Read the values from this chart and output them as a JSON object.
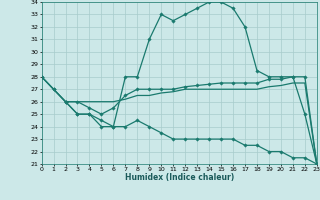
{
  "xlabel": "Humidex (Indice chaleur)",
  "xlim": [
    0,
    23
  ],
  "ylim": [
    21,
    34
  ],
  "yticks": [
    21,
    22,
    23,
    24,
    25,
    26,
    27,
    28,
    29,
    30,
    31,
    32,
    33,
    34
  ],
  "xticks": [
    0,
    1,
    2,
    3,
    4,
    5,
    6,
    7,
    8,
    9,
    10,
    11,
    12,
    13,
    14,
    15,
    16,
    17,
    18,
    19,
    20,
    21,
    22,
    23
  ],
  "bg_color": "#cce8e8",
  "line_color": "#1a7a6e",
  "grid_color": "#a8cccc",
  "line1_x": [
    0,
    1,
    2,
    3,
    4,
    5,
    6,
    7,
    8,
    9,
    10,
    11,
    12,
    13,
    14,
    15,
    16,
    17,
    18,
    19,
    20,
    21,
    22,
    23
  ],
  "line1_y": [
    28,
    27,
    26,
    25,
    25,
    24,
    24,
    28,
    28,
    31,
    33,
    32.5,
    33,
    33.5,
    34,
    34,
    33.5,
    32,
    28.5,
    28,
    28,
    28,
    25,
    21
  ],
  "line2_x": [
    0,
    1,
    2,
    3,
    4,
    5,
    6,
    7,
    8,
    9,
    10,
    11,
    12,
    13,
    14,
    15,
    16,
    17,
    18,
    19,
    20,
    21,
    22,
    23
  ],
  "line2_y": [
    28,
    27,
    26,
    26,
    25.5,
    25,
    25.5,
    26.5,
    27,
    27,
    27,
    27,
    27.2,
    27.3,
    27.4,
    27.5,
    27.5,
    27.5,
    27.5,
    27.8,
    27.8,
    28,
    28,
    21
  ],
  "line3_x": [
    0,
    1,
    2,
    3,
    4,
    5,
    6,
    7,
    8,
    9,
    10,
    11,
    12,
    13,
    14,
    15,
    16,
    17,
    18,
    19,
    20,
    21,
    22,
    23
  ],
  "line3_y": [
    28,
    27,
    26,
    26,
    26,
    26,
    26,
    26.2,
    26.5,
    26.5,
    26.7,
    26.8,
    27,
    27,
    27,
    27,
    27,
    27,
    27,
    27.2,
    27.3,
    27.5,
    27.5,
    21
  ],
  "line4_x": [
    2,
    3,
    4,
    5,
    6,
    7,
    8,
    9,
    10,
    11,
    12,
    13,
    14,
    15,
    16,
    17,
    18,
    19,
    20,
    21,
    22,
    23
  ],
  "line4_y": [
    26,
    25,
    25,
    24.5,
    24,
    24,
    24.5,
    24,
    23.5,
    23,
    23,
    23,
    23,
    23,
    23,
    22.5,
    22.5,
    22,
    22,
    21.5,
    21.5,
    21
  ]
}
